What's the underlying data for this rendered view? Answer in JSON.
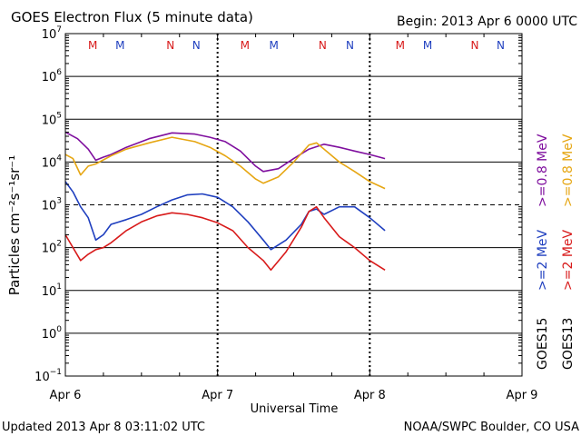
{
  "header": {
    "title": "GOES Electron Flux (5 minute data)",
    "begin": "Begin: 2013 Apr 6 0000 UTC"
  },
  "footer": {
    "updated": "Updated 2013 Apr  8 03:11:02 UTC",
    "credit": "NOAA/SWPC Boulder, CO USA"
  },
  "colors": {
    "purple": "#7f0f9e",
    "orange": "#e6a612",
    "blue": "#1f3fbf",
    "red": "#d81a1a",
    "axis": "#000000"
  },
  "chart_data": {
    "type": "line",
    "title": "GOES Electron Flux (5 minute data)",
    "xlabel": "Universal Time",
    "ylabel": "Particles cm⁻²s⁻¹sr⁻¹",
    "xlim": [
      0,
      3
    ],
    "ylim": [
      0.1,
      10000000
    ],
    "yscale": "log",
    "x_ticks": [
      {
        "x": 0,
        "label": "Apr 6"
      },
      {
        "x": 1,
        "label": "Apr 7"
      },
      {
        "x": 2,
        "label": "Apr 8"
      },
      {
        "x": 3,
        "label": "Apr 9"
      }
    ],
    "y_ticks": [
      {
        "base": "10",
        "exp": "7",
        "value": 10000000
      },
      {
        "base": "10",
        "exp": "6",
        "value": 1000000
      },
      {
        "base": "10",
        "exp": "5",
        "value": 100000
      },
      {
        "base": "10",
        "exp": "4",
        "value": 10000
      },
      {
        "base": "10",
        "exp": "3",
        "value": 1000
      },
      {
        "base": "10",
        "exp": "2",
        "value": 100
      },
      {
        "base": "10",
        "exp": "1",
        "value": 10
      },
      {
        "base": "10",
        "exp": "0",
        "value": 1
      },
      {
        "base": "10",
        "exp": "−1",
        "value": 0.1
      }
    ],
    "threshold": 1000,
    "mn_markers": [
      {
        "x": 0.18,
        "label": "M",
        "color": "red"
      },
      {
        "x": 0.36,
        "label": "M",
        "color": "blue"
      },
      {
        "x": 0.69,
        "label": "N",
        "color": "red"
      },
      {
        "x": 0.86,
        "label": "N",
        "color": "blue"
      },
      {
        "x": 1.18,
        "label": "M",
        "color": "red"
      },
      {
        "x": 1.37,
        "label": "M",
        "color": "blue"
      },
      {
        "x": 1.69,
        "label": "N",
        "color": "red"
      },
      {
        "x": 1.87,
        "label": "N",
        "color": "blue"
      },
      {
        "x": 2.2,
        "label": "M",
        "color": "red"
      },
      {
        "x": 2.38,
        "label": "M",
        "color": "blue"
      },
      {
        "x": 2.69,
        "label": "N",
        "color": "red"
      },
      {
        "x": 2.86,
        "label": "N",
        "color": "blue"
      }
    ],
    "legend": {
      "goes15": "GOES15",
      "goes13": "GOES13",
      "purple_label": ">=0.8 MeV",
      "orange_label": ">=0.8 MeV",
      "blue_label": ">=2 MeV",
      "red_label": ">=2 MeV"
    },
    "series": [
      {
        "name": "GOES15 >=0.8 MeV",
        "color": "purple",
        "x": [
          0,
          0.08,
          0.15,
          0.2,
          0.25,
          0.3,
          0.4,
          0.55,
          0.7,
          0.85,
          0.95,
          1.05,
          1.15,
          1.25,
          1.3,
          1.4,
          1.5,
          1.6,
          1.7,
          1.8,
          1.9,
          2.0,
          2.1
        ],
        "values": [
          50000,
          35000,
          20000,
          11000,
          13000,
          15000,
          22000,
          35000,
          48000,
          45000,
          38000,
          30000,
          18000,
          8000,
          6000,
          7000,
          12000,
          20000,
          26000,
          22000,
          18000,
          15000,
          12000
        ]
      },
      {
        "name": "GOES13 >=0.8 MeV",
        "color": "orange",
        "x": [
          0,
          0.05,
          0.1,
          0.15,
          0.2,
          0.3,
          0.4,
          0.55,
          0.7,
          0.85,
          0.95,
          1.05,
          1.15,
          1.25,
          1.3,
          1.4,
          1.5,
          1.6,
          1.65,
          1.7,
          1.8,
          1.9,
          2.0,
          2.1
        ],
        "values": [
          15000,
          12000,
          5000,
          8000,
          9000,
          14000,
          20000,
          28000,
          38000,
          30000,
          22000,
          14000,
          8000,
          4000,
          3200,
          4500,
          10000,
          25000,
          28000,
          20000,
          10000,
          6000,
          3500,
          2400
        ]
      },
      {
        "name": "GOES15 >=2 MeV",
        "color": "blue",
        "x": [
          0,
          0.05,
          0.1,
          0.15,
          0.2,
          0.25,
          0.3,
          0.4,
          0.5,
          0.6,
          0.7,
          0.8,
          0.9,
          1.0,
          1.1,
          1.2,
          1.3,
          1.35,
          1.45,
          1.55,
          1.6,
          1.65,
          1.7,
          1.8,
          1.9,
          2.0,
          2.1
        ],
        "values": [
          3500,
          2000,
          900,
          500,
          150,
          200,
          350,
          450,
          600,
          900,
          1300,
          1700,
          1800,
          1500,
          900,
          400,
          150,
          90,
          150,
          350,
          700,
          800,
          600,
          900,
          900,
          500,
          250
        ]
      },
      {
        "name": "GOES13 >=2 MeV",
        "color": "red",
        "x": [
          0,
          0.05,
          0.1,
          0.15,
          0.2,
          0.25,
          0.3,
          0.4,
          0.5,
          0.6,
          0.7,
          0.8,
          0.9,
          1.0,
          1.1,
          1.2,
          1.3,
          1.35,
          1.45,
          1.55,
          1.6,
          1.65,
          1.7,
          1.8,
          1.9,
          2.0,
          2.1
        ],
        "values": [
          200,
          100,
          50,
          70,
          90,
          100,
          130,
          250,
          400,
          550,
          650,
          600,
          500,
          380,
          250,
          100,
          50,
          30,
          80,
          300,
          700,
          900,
          500,
          180,
          100,
          50,
          30
        ]
      }
    ]
  }
}
